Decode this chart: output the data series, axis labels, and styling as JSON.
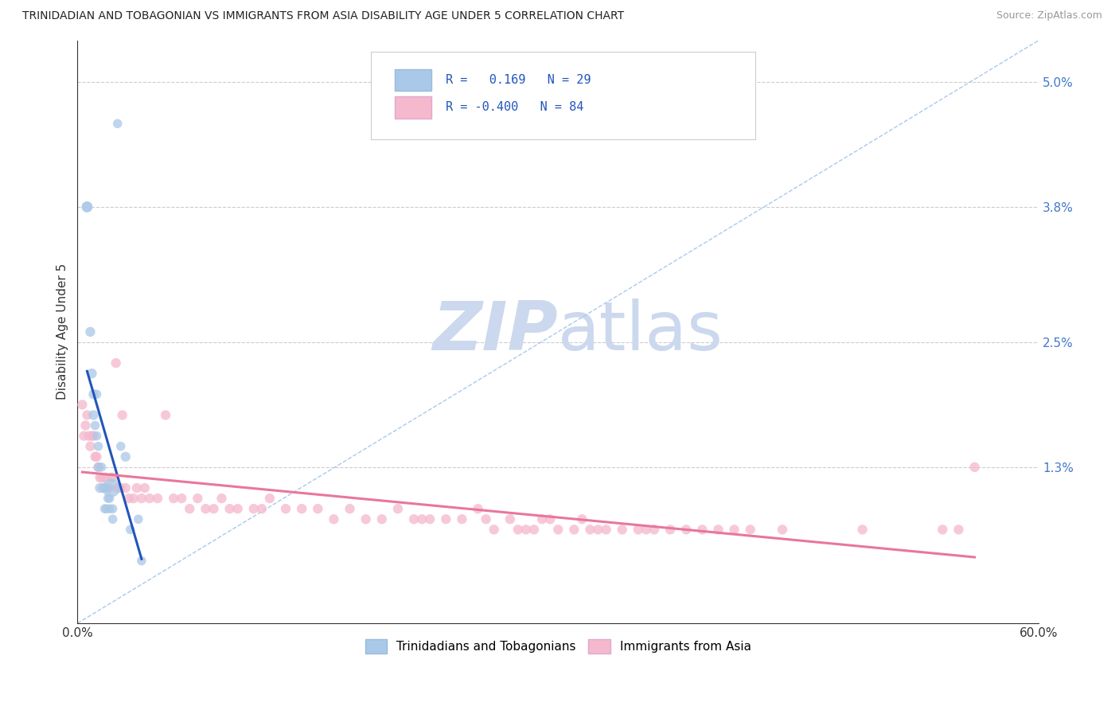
{
  "title": "TRINIDADIAN AND TOBAGONIAN VS IMMIGRANTS FROM ASIA DISABILITY AGE UNDER 5 CORRELATION CHART",
  "source": "Source: ZipAtlas.com",
  "ylabel": "Disability Age Under 5",
  "xlim": [
    0.0,
    0.6
  ],
  "ylim": [
    -0.002,
    0.054
  ],
  "xticks": [
    0.0,
    0.1,
    0.2,
    0.3,
    0.4,
    0.5,
    0.6
  ],
  "xticklabels": [
    "0.0%",
    "",
    "",
    "",
    "",
    "",
    "60.0%"
  ],
  "yticks_right": [
    0.013,
    0.025,
    0.038,
    0.05
  ],
  "yticklabels_right": [
    "1.3%",
    "2.5%",
    "3.8%",
    "5.0%"
  ],
  "legend_labels": [
    "Trinidadians and Tobagonians",
    "Immigrants from Asia"
  ],
  "blue_color": "#aac8e8",
  "pink_color": "#f5b8cc",
  "blue_line_color": "#2255bb",
  "pink_line_color": "#e87799",
  "diag_color": "#aac8ee",
  "watermark_color": "#ccd8ee",
  "blue_scatter_x": [
    0.006,
    0.006,
    0.008,
    0.009,
    0.01,
    0.01,
    0.011,
    0.012,
    0.012,
    0.013,
    0.013,
    0.014,
    0.015,
    0.016,
    0.017,
    0.018,
    0.018,
    0.019,
    0.02,
    0.02,
    0.021,
    0.022,
    0.022,
    0.025,
    0.027,
    0.03,
    0.033,
    0.038,
    0.04
  ],
  "blue_scatter_y": [
    0.038,
    0.038,
    0.026,
    0.022,
    0.02,
    0.018,
    0.017,
    0.02,
    0.016,
    0.015,
    0.013,
    0.011,
    0.013,
    0.011,
    0.009,
    0.009,
    0.011,
    0.01,
    0.01,
    0.009,
    0.011,
    0.008,
    0.009,
    0.046,
    0.015,
    0.014,
    0.007,
    0.008,
    0.004
  ],
  "blue_scatter_size": [
    90,
    100,
    80,
    80,
    80,
    80,
    70,
    70,
    70,
    70,
    70,
    80,
    70,
    70,
    70,
    70,
    70,
    70,
    70,
    70,
    280,
    70,
    70,
    70,
    70,
    80,
    70,
    70,
    70
  ],
  "pink_scatter_x": [
    0.003,
    0.004,
    0.005,
    0.006,
    0.007,
    0.008,
    0.009,
    0.01,
    0.011,
    0.012,
    0.013,
    0.014,
    0.015,
    0.016,
    0.017,
    0.018,
    0.019,
    0.02,
    0.021,
    0.022,
    0.024,
    0.025,
    0.027,
    0.028,
    0.03,
    0.032,
    0.035,
    0.037,
    0.04,
    0.042,
    0.045,
    0.05,
    0.055,
    0.06,
    0.065,
    0.07,
    0.075,
    0.08,
    0.085,
    0.09,
    0.095,
    0.1,
    0.11,
    0.115,
    0.12,
    0.13,
    0.14,
    0.15,
    0.16,
    0.17,
    0.18,
    0.19,
    0.2,
    0.21,
    0.215,
    0.22,
    0.23,
    0.24,
    0.25,
    0.255,
    0.26,
    0.27,
    0.275,
    0.28,
    0.285,
    0.29,
    0.295,
    0.3,
    0.31,
    0.315,
    0.32,
    0.325,
    0.33,
    0.34,
    0.35,
    0.355,
    0.36,
    0.37,
    0.38,
    0.39,
    0.4,
    0.41,
    0.42,
    0.44,
    0.49,
    0.54,
    0.55,
    0.56
  ],
  "pink_scatter_y": [
    0.019,
    0.016,
    0.017,
    0.018,
    0.016,
    0.015,
    0.016,
    0.016,
    0.014,
    0.014,
    0.013,
    0.012,
    0.012,
    0.011,
    0.012,
    0.011,
    0.011,
    0.011,
    0.012,
    0.012,
    0.023,
    0.011,
    0.011,
    0.018,
    0.011,
    0.01,
    0.01,
    0.011,
    0.01,
    0.011,
    0.01,
    0.01,
    0.018,
    0.01,
    0.01,
    0.009,
    0.01,
    0.009,
    0.009,
    0.01,
    0.009,
    0.009,
    0.009,
    0.009,
    0.01,
    0.009,
    0.009,
    0.009,
    0.008,
    0.009,
    0.008,
    0.008,
    0.009,
    0.008,
    0.008,
    0.008,
    0.008,
    0.008,
    0.009,
    0.008,
    0.007,
    0.008,
    0.007,
    0.007,
    0.007,
    0.008,
    0.008,
    0.007,
    0.007,
    0.008,
    0.007,
    0.007,
    0.007,
    0.007,
    0.007,
    0.007,
    0.007,
    0.007,
    0.007,
    0.007,
    0.007,
    0.007,
    0.007,
    0.007,
    0.007,
    0.007,
    0.007,
    0.013
  ],
  "pink_scatter_size": [
    80,
    80,
    80,
    80,
    80,
    80,
    80,
    80,
    80,
    80,
    80,
    80,
    80,
    80,
    80,
    80,
    80,
    80,
    80,
    80,
    80,
    80,
    80,
    80,
    80,
    80,
    80,
    80,
    80,
    80,
    80,
    80,
    80,
    80,
    80,
    80,
    80,
    80,
    80,
    80,
    80,
    80,
    80,
    80,
    80,
    80,
    80,
    80,
    80,
    80,
    80,
    80,
    80,
    80,
    80,
    80,
    80,
    80,
    80,
    80,
    80,
    80,
    80,
    80,
    80,
    80,
    80,
    80,
    80,
    80,
    80,
    80,
    80,
    80,
    80,
    80,
    80,
    80,
    80,
    80,
    80,
    80,
    80,
    80,
    80,
    80,
    80,
    80
  ]
}
